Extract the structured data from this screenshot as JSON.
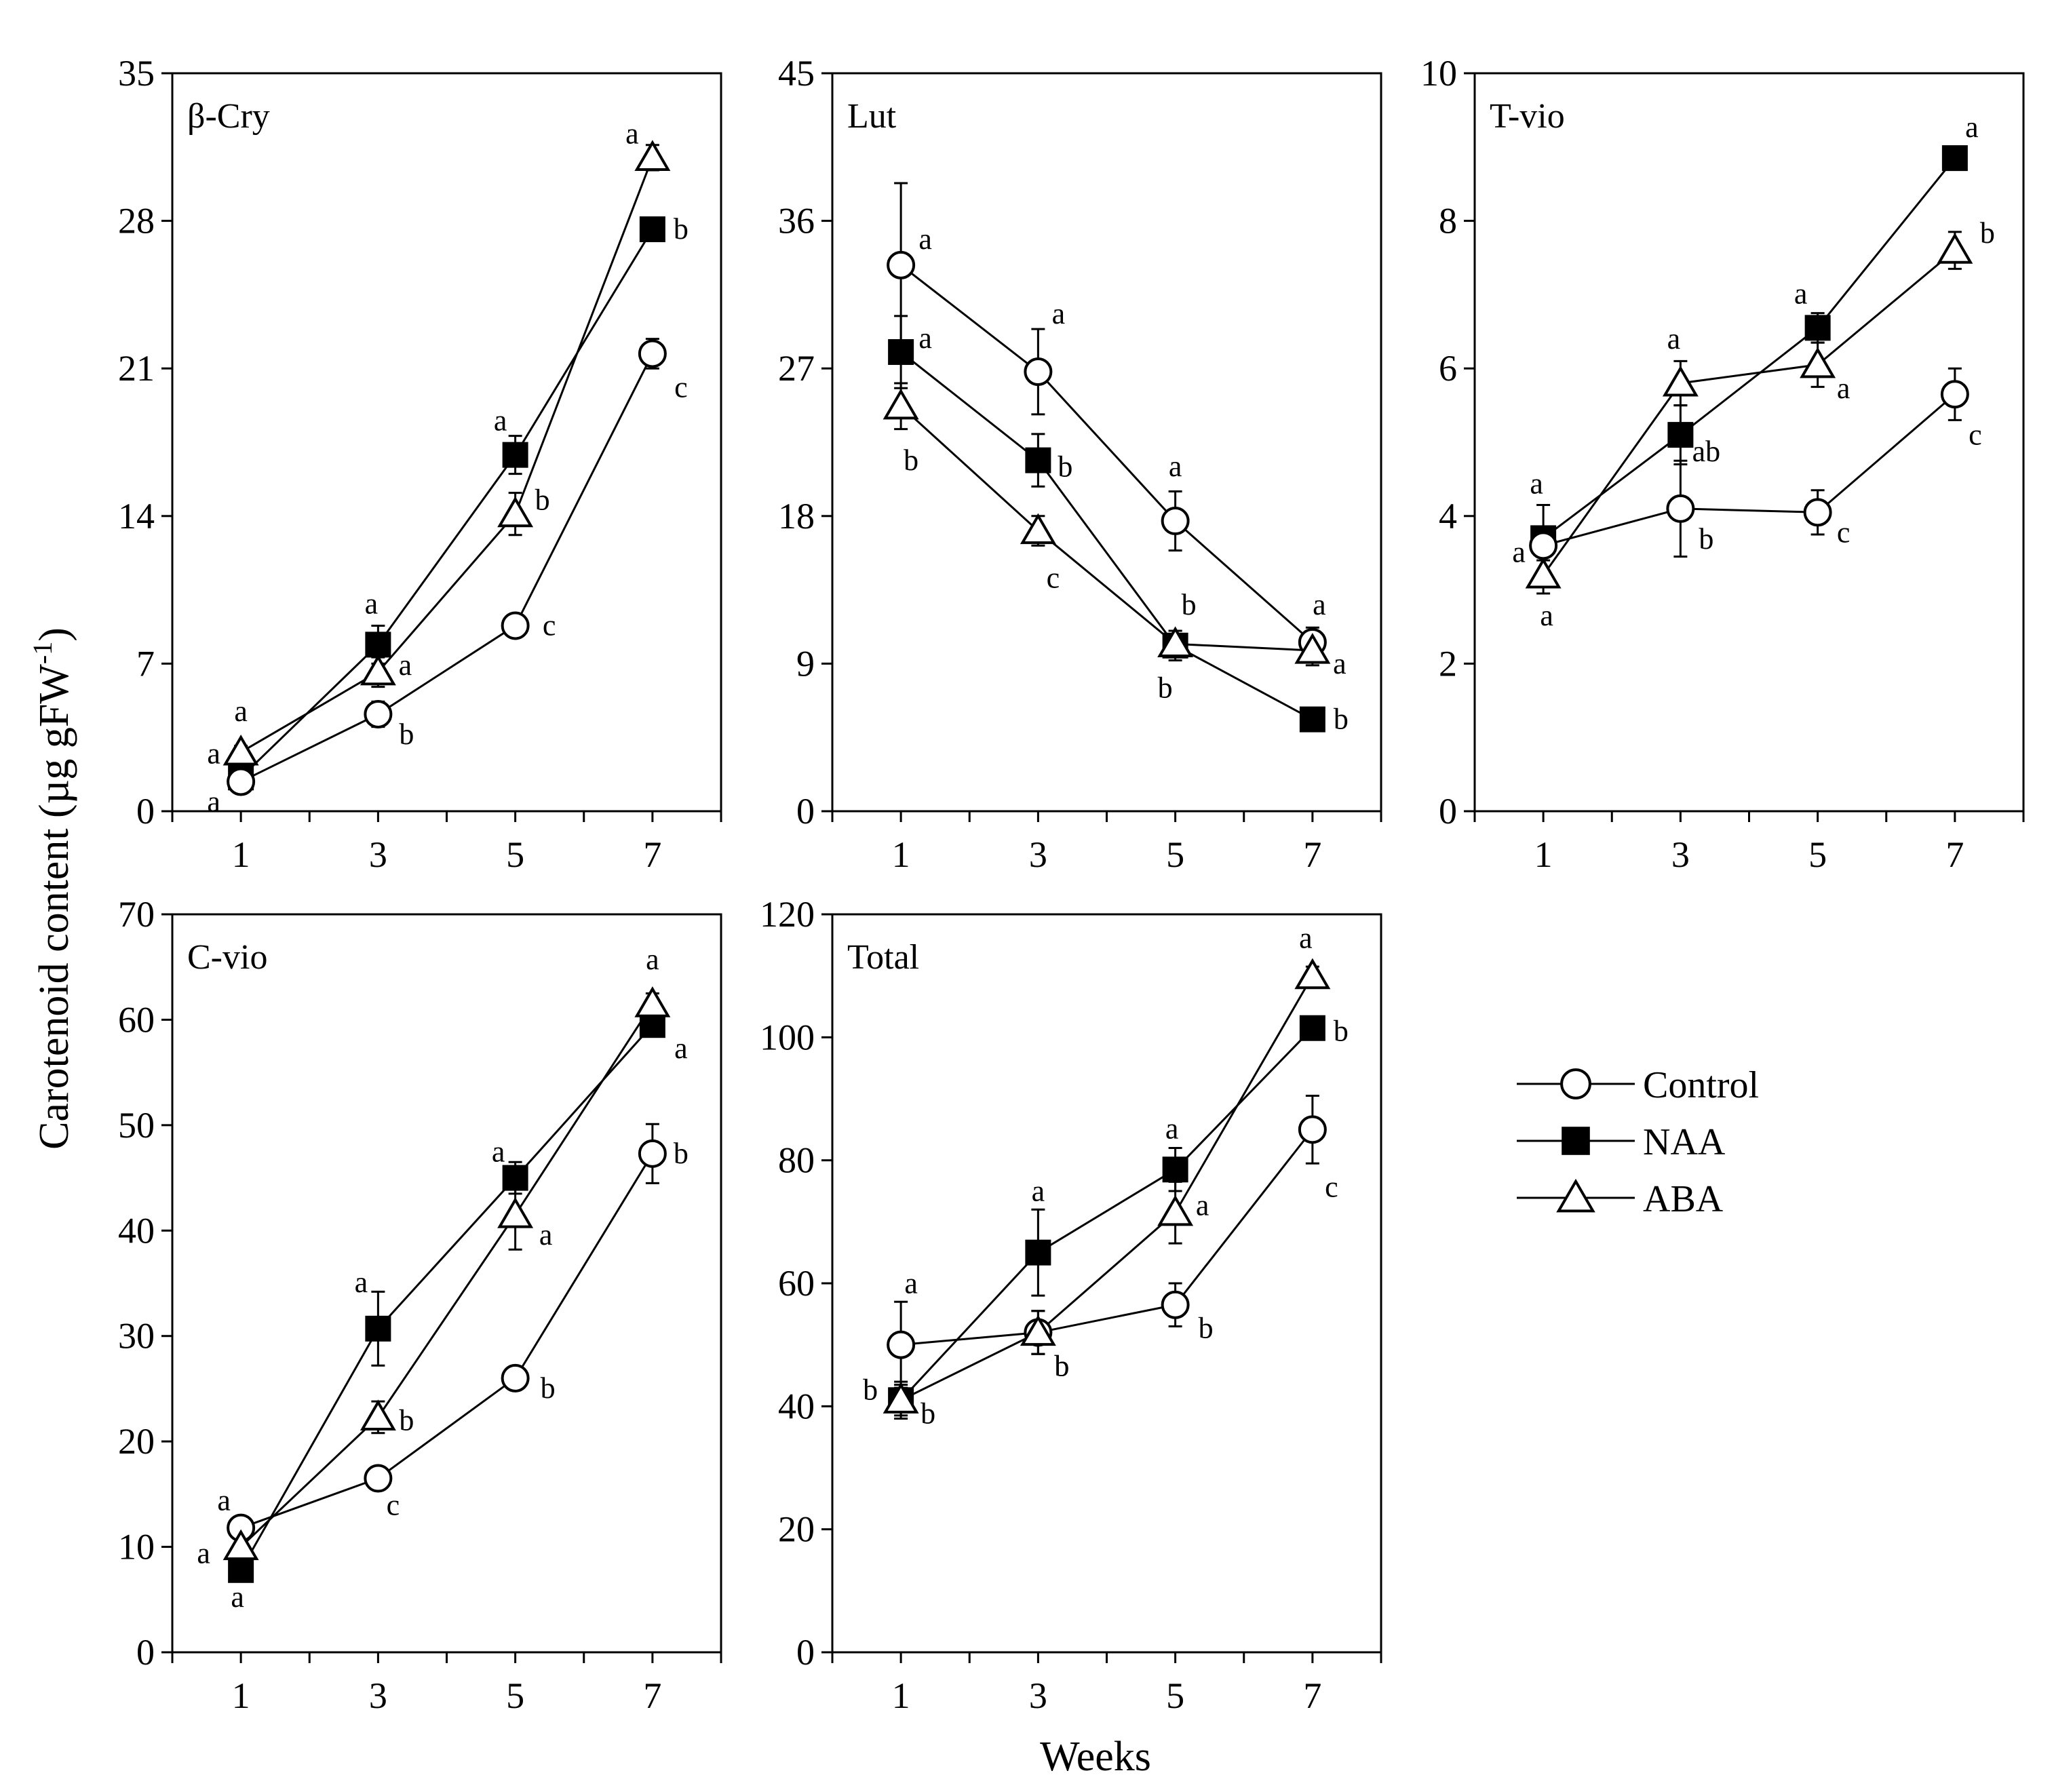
{
  "chart_data": {
    "type": "line",
    "x": [
      1,
      3,
      5,
      7
    ],
    "xlabel": "Weeks",
    "ylabel": "Carotenoid content (µg gFW",
    "ylabel_sup": "-1",
    "ylabel_close": ")",
    "legend": [
      {
        "name": "Control",
        "marker": "circle-open"
      },
      {
        "name": "NAA",
        "marker": "square-filled"
      },
      {
        "name": "ABA",
        "marker": "triangle-open"
      }
    ],
    "panels": [
      {
        "label": "β-Cry",
        "ylim": [
          0,
          35
        ],
        "yticks": [
          "0",
          "7",
          "14",
          "21",
          "28",
          "35"
        ],
        "series": [
          {
            "name": "Control",
            "values": [
              1.4,
              4.6,
              8.8,
              21.7
            ],
            "err": [
              0.3,
              0.6,
              0.4,
              0.7
            ],
            "sig": [
              "a",
              "b",
              "c",
              "c"
            ]
          },
          {
            "name": "NAA",
            "values": [
              1.6,
              7.9,
              16.9,
              27.6
            ],
            "err": [
              0.3,
              0.9,
              0.9,
              0.5
            ],
            "sig": [
              "a",
              "a",
              "a",
              "b"
            ]
          },
          {
            "name": "ABA",
            "values": [
              2.8,
              6.6,
              14.1,
              31.0
            ],
            "err": [
              0.3,
              0.7,
              1.0,
              0.6
            ],
            "sig": [
              "a",
              "a",
              "b",
              "a"
            ]
          }
        ]
      },
      {
        "label": "Lut",
        "ylim": [
          0,
          45
        ],
        "yticks": [
          "0",
          "9",
          "18",
          "27",
          "36",
          "45"
        ],
        "series": [
          {
            "name": "Control",
            "values": [
              33.3,
              26.8,
              17.7,
              10.3
            ],
            "err": [
              5.0,
              2.6,
              1.8,
              0.9
            ],
            "sig": [
              "a",
              "a",
              "a",
              "a"
            ]
          },
          {
            "name": "NAA",
            "values": [
              28.0,
              21.4,
              10.1,
              5.6
            ],
            "err": [
              2.2,
              1.6,
              0.9,
              0.3
            ],
            "sig": [
              "a",
              "b",
              "b",
              "b"
            ]
          },
          {
            "name": "ABA",
            "values": [
              24.7,
              17.1,
              10.2,
              9.8
            ],
            "err": [
              1.4,
              0.9,
              0.8,
              0.9
            ],
            "sig": [
              "b",
              "c",
              "b",
              "a"
            ]
          }
        ]
      },
      {
        "label": "T-vio",
        "ylim": [
          0,
          10
        ],
        "yticks": [
          "0",
          "2",
          "4",
          "6",
          "8",
          "10"
        ],
        "series": [
          {
            "name": "Control",
            "values": [
              3.6,
              4.1,
              4.05,
              5.65
            ],
            "err": [
              0.2,
              0.65,
              0.3,
              0.35
            ],
            "sig": [
              "a",
              "b",
              "c",
              "c"
            ]
          },
          {
            "name": "NAA",
            "values": [
              3.7,
              5.1,
              6.55,
              8.85
            ],
            "err": [
              0.45,
              0.4,
              0.2,
              0.1
            ],
            "sig": [
              "a",
              "ab",
              "a",
              "a"
            ]
          },
          {
            "name": "ABA",
            "values": [
              3.2,
              5.8,
              6.05,
              7.6
            ],
            "err": [
              0.25,
              0.3,
              0.3,
              0.25
            ],
            "sig": [
              "a",
              "a",
              "a",
              "b"
            ]
          }
        ]
      },
      {
        "label": "C-vio",
        "ylim": [
          0,
          70
        ],
        "yticks": [
          "0",
          "10",
          "20",
          "30",
          "40",
          "50",
          "60",
          "70"
        ],
        "series": [
          {
            "name": "Control",
            "values": [
              11.8,
              16.5,
              26.0,
              47.3
            ],
            "err": [
              0.8,
              1.0,
              0.8,
              2.8
            ],
            "sig": [
              "a",
              "c",
              "b",
              "b"
            ]
          },
          {
            "name": "NAA",
            "values": [
              7.8,
              30.7,
              45.0,
              59.5
            ],
            "err": [
              0.8,
              3.5,
              1.5,
              1.0
            ],
            "sig": [
              "a",
              "a",
              "a",
              "a"
            ]
          },
          {
            "name": "ABA",
            "values": [
              10.0,
              22.3,
              41.5,
              61.5
            ],
            "err": [
              0.8,
              1.5,
              3.3,
              1.0
            ],
            "sig": [
              "a",
              "b",
              "a",
              "a"
            ]
          }
        ]
      },
      {
        "label": "Total",
        "ylim": [
          0,
          120
        ],
        "yticks": [
          "0",
          "20",
          "40",
          "60",
          "80",
          "100",
          "120"
        ],
        "series": [
          {
            "name": "Control",
            "values": [
              50.0,
              52.0,
              56.5,
              85.0
            ],
            "err": [
              7.0,
              3.5,
              3.5,
              5.5
            ],
            "sig": [
              "a",
              "b",
              "b",
              "c"
            ]
          },
          {
            "name": "NAA",
            "values": [
              41.0,
              65.0,
              78.5,
              101.5
            ],
            "err": [
              3.0,
              7.0,
              3.5,
              1.5
            ],
            "sig": [
              "b",
              "a",
              "a",
              "b"
            ]
          },
          {
            "name": "ABA",
            "values": [
              41.0,
              52.0,
              71.5,
              110.0
            ],
            "err": [
              2.5,
              3.5,
              5.0,
              1.5
            ],
            "sig": [
              "b",
              "b",
              "a",
              "a"
            ]
          }
        ]
      }
    ]
  }
}
